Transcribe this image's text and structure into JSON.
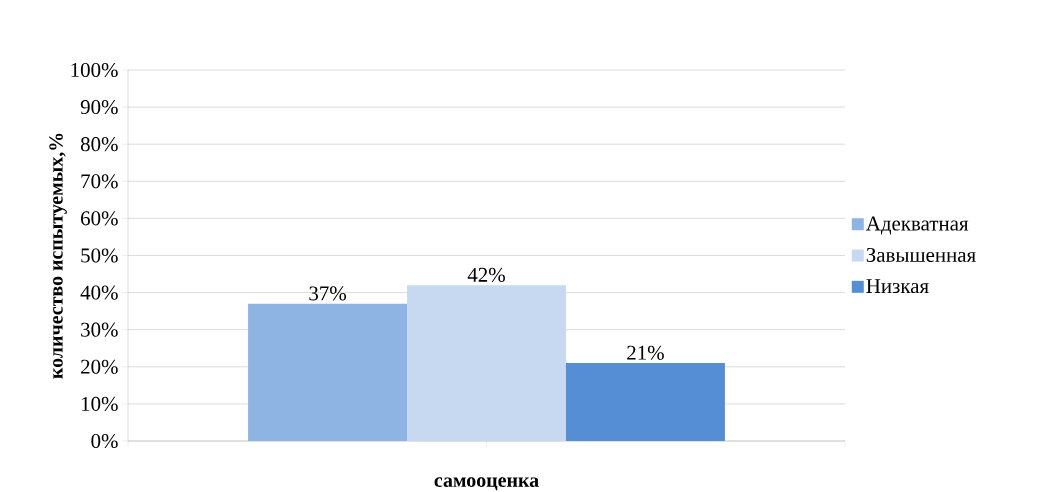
{
  "chart_data": {
    "type": "bar",
    "xlabel": "самооценка",
    "ylabel": "количество испытуемых,%",
    "categories": [
      null
    ],
    "series": [
      {
        "name": "Адекватная",
        "color": "#8eb4e3",
        "values": [
          37
        ],
        "value_labels": [
          "37%"
        ]
      },
      {
        "name": "Завышенная",
        "color": "#c6d9f1",
        "values": [
          42
        ],
        "value_labels": [
          "42%"
        ]
      },
      {
        "name": "Низкая",
        "color": "#558ed5",
        "values": [
          21
        ],
        "value_labels": [
          "21%"
        ]
      }
    ],
    "ylim": [
      0,
      100
    ],
    "yticks": [
      {
        "value": 0,
        "label": "0%"
      },
      {
        "value": 10,
        "label": "10%"
      },
      {
        "value": 20,
        "label": "20%"
      },
      {
        "value": 30,
        "label": "30%"
      },
      {
        "value": 40,
        "label": "40%"
      },
      {
        "value": 50,
        "label": "50%"
      },
      {
        "value": 60,
        "label": "60%"
      },
      {
        "value": 70,
        "label": "70%"
      },
      {
        "value": 80,
        "label": "80%"
      },
      {
        "value": 90,
        "label": "90%"
      },
      {
        "value": 100,
        "label": "100%"
      }
    ],
    "grid": "y",
    "legend": "right"
  }
}
